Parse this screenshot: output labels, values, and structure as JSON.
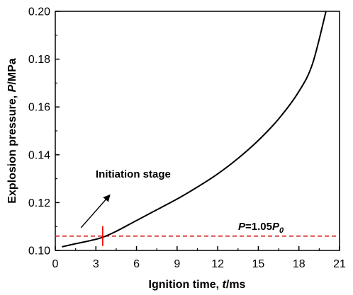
{
  "chart_data": {
    "type": "line",
    "xlabel": {
      "prefix": "Ignition time, ",
      "var": "t",
      "suffix": "/ms"
    },
    "ylabel": {
      "prefix": "Explosion pressure, ",
      "var": "P",
      "suffix": "/MPa"
    },
    "xlim": [
      0,
      21
    ],
    "ylim": [
      0.1,
      0.2
    ],
    "xticks": [
      0,
      3,
      6,
      9,
      12,
      15,
      18,
      21
    ],
    "xtick_labels": [
      "0",
      "3",
      "6",
      "9",
      "12",
      "15",
      "18",
      "21"
    ],
    "yticks": [
      0.1,
      0.12,
      0.14,
      0.16,
      0.18,
      0.2
    ],
    "ytick_labels": [
      "0.10",
      "0.12",
      "0.14",
      "0.16",
      "0.18",
      "0.20"
    ],
    "grid": false,
    "series": [
      {
        "color": "#000000",
        "x": [
          0.5,
          1.5,
          2.5,
          3.5,
          4.5,
          6,
          7.5,
          9,
          10.5,
          12,
          13.5,
          15,
          16.5,
          18,
          19,
          20
        ],
        "y": [
          0.1015,
          0.1028,
          0.104,
          0.1055,
          0.108,
          0.1125,
          0.117,
          0.1215,
          0.1265,
          0.132,
          0.1385,
          0.146,
          0.155,
          0.1665,
          0.178,
          0.2
        ]
      }
    ],
    "threshold": {
      "y": 0.106,
      "color": "#d62728",
      "style": "dashed",
      "label": {
        "var": "P",
        "mid": "=1.05",
        "var2": "P",
        "sub": "0"
      }
    },
    "marker": {
      "x": 3.5,
      "y": 0.106,
      "color": "#ff0000"
    },
    "annotation": {
      "text": "Initiation stage",
      "arrow_from": [
        1.9,
        0.1095
      ],
      "arrow_to": [
        4.0,
        0.123
      ]
    }
  }
}
